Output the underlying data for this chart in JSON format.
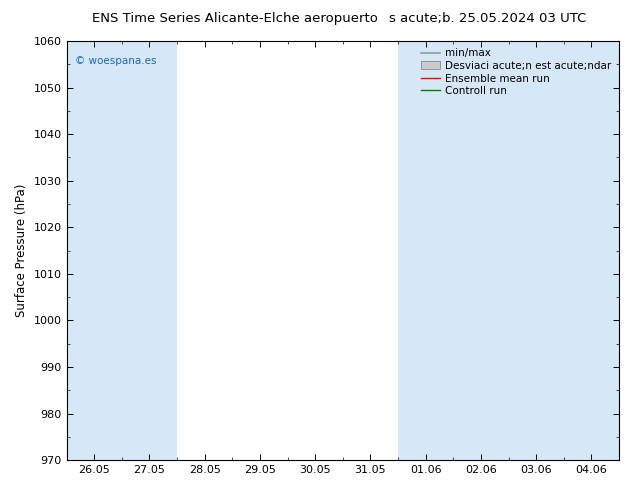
{
  "title_left": "ENS Time Series Alicante-Elche aeropuerto",
  "title_right": "s acute;b. 25.05.2024 03 UTC",
  "ylabel": "Surface Pressure (hPa)",
  "ylim": [
    970,
    1060
  ],
  "yticks": [
    970,
    980,
    990,
    1000,
    1010,
    1020,
    1030,
    1040,
    1050,
    1060
  ],
  "xtick_labels": [
    "26.05",
    "27.05",
    "28.05",
    "29.05",
    "30.05",
    "31.05",
    "01.06",
    "02.06",
    "03.06",
    "04.06"
  ],
  "num_xticks": 10,
  "watermark": "© woespana.es",
  "legend_items": [
    "min/max",
    "Desviaci acute;n est acute;ndar",
    "Ensemble mean run",
    "Controll run"
  ],
  "bg_color": "#ffffff",
  "plot_bg_color": "#ffffff",
  "blue_band_color": "#d6e8f7",
  "title_fontsize": 9.5,
  "axis_label_fontsize": 8.5,
  "tick_fontsize": 8,
  "legend_fontsize": 7.5,
  "watermark_color": "#1a66cc",
  "fig_width": 6.34,
  "fig_height": 4.9,
  "dpi": 100,
  "blue_bands": [
    0,
    1,
    6,
    7,
    8,
    9
  ],
  "xtick_positions": [
    0,
    1,
    2,
    3,
    4,
    5,
    6,
    7,
    8,
    9
  ]
}
